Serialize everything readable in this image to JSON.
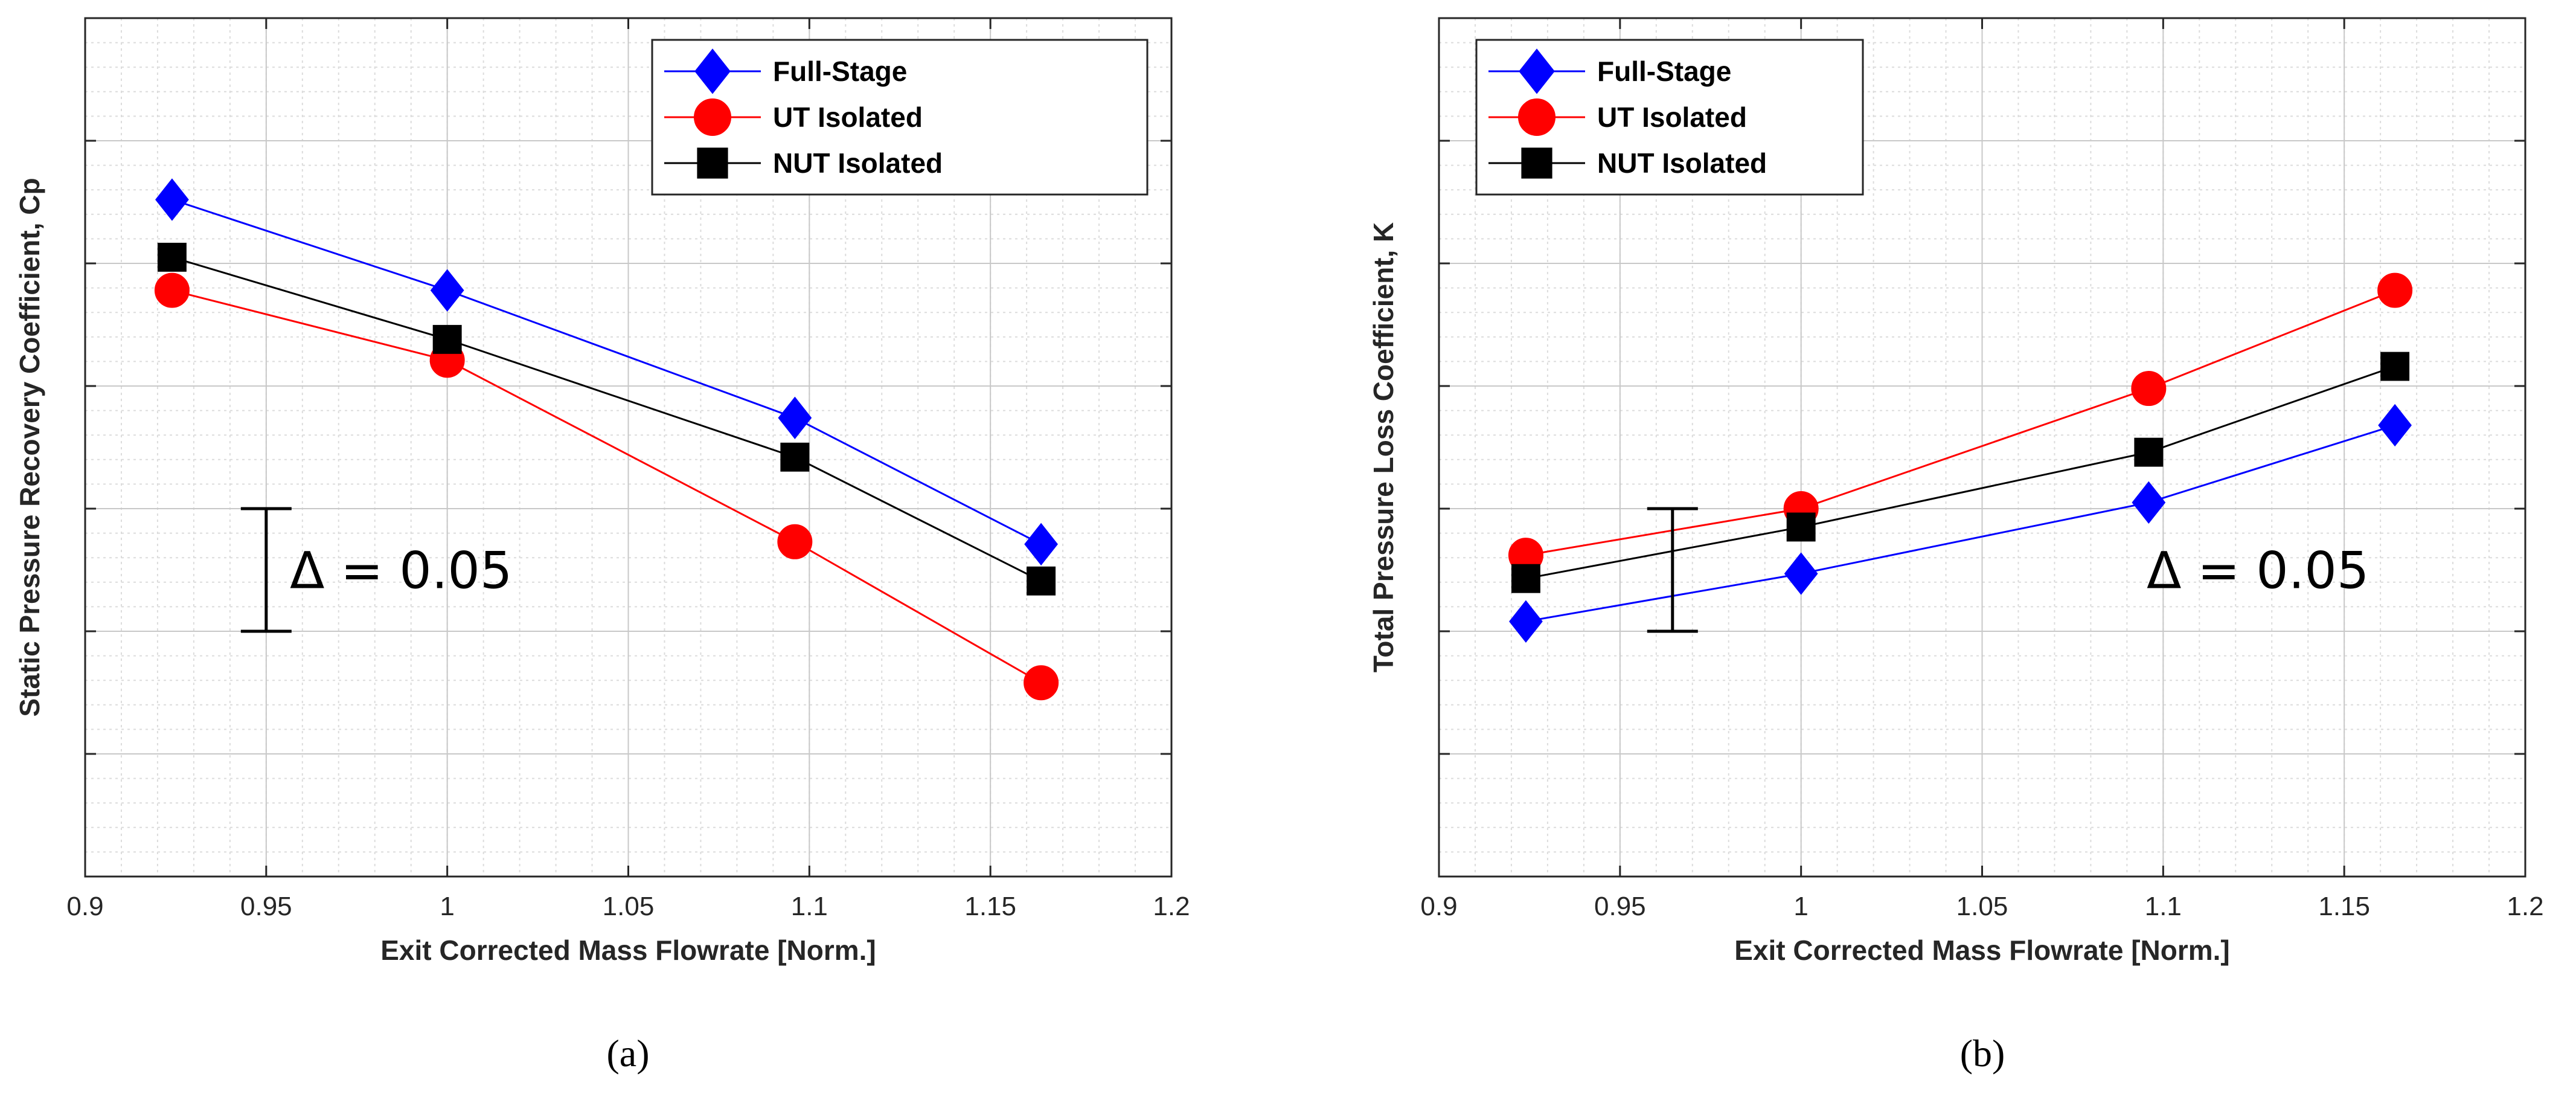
{
  "chart_data": [
    {
      "type": "line",
      "caption": "(a)",
      "xlabel": "Exit Corrected Mass Flowrate [Norm.]",
      "ylabel": "Static Pressure Recovery Coefficient, Cp",
      "xlim": [
        0.9,
        1.2
      ],
      "ylim": [
        0,
        0.7
      ],
      "xticks": [
        0.9,
        0.95,
        1.0,
        1.05,
        1.1,
        1.15,
        1.2
      ],
      "xtick_labels": [
        "0.9",
        "0.95",
        "1",
        "1.05",
        "1.1",
        "1.15",
        "1.2"
      ],
      "grid": true,
      "legend_position": "top-right",
      "x": [
        0.924,
        1.0,
        1.096,
        1.164
      ],
      "series": [
        {
          "name": "Full-Stage",
          "values": [
            0.552,
            0.478,
            0.374,
            0.271
          ],
          "color": "#0000ff",
          "marker": "diamond"
        },
        {
          "name": "UT Isolated",
          "values": [
            0.478,
            0.421,
            0.273,
            0.158
          ],
          "color": "#ff0000",
          "marker": "circle"
        },
        {
          "name": "NUT Isolated",
          "values": [
            0.505,
            0.438,
            0.342,
            0.241
          ],
          "color": "#000000",
          "marker": "square"
        }
      ],
      "annotation": {
        "text": "Δ = 0.05",
        "x": 0.95,
        "y_low": 0.2,
        "y_high": 0.3
      }
    },
    {
      "type": "line",
      "caption": "(b)",
      "xlabel": "Exit Corrected Mass Flowrate [Norm.]",
      "ylabel": "Total Pressure Loss Coefficient, K",
      "xlim": [
        0.9,
        1.2
      ],
      "ylim": [
        0,
        0.7
      ],
      "xticks": [
        0.9,
        0.95,
        1.0,
        1.05,
        1.1,
        1.15,
        1.2
      ],
      "xtick_labels": [
        "0.9",
        "0.95",
        "1",
        "1.05",
        "1.1",
        "1.15",
        "1.2"
      ],
      "grid": true,
      "legend_position": "top-right",
      "x": [
        0.924,
        1.0,
        1.096,
        1.164
      ],
      "series": [
        {
          "name": "Full-Stage",
          "values": [
            0.208,
            0.247,
            0.305,
            0.368
          ],
          "color": "#0000ff",
          "marker": "diamond"
        },
        {
          "name": "UT Isolated",
          "values": [
            0.262,
            0.3,
            0.398,
            0.478
          ],
          "color": "#ff0000",
          "marker": "circle"
        },
        {
          "name": "NUT Isolated",
          "values": [
            0.243,
            0.285,
            0.346,
            0.416
          ],
          "color": "#000000",
          "marker": "square"
        }
      ],
      "annotation": {
        "text": "Δ = 0.05",
        "x": 0.9645,
        "y_low": 0.2,
        "y_high": 0.3
      }
    }
  ]
}
